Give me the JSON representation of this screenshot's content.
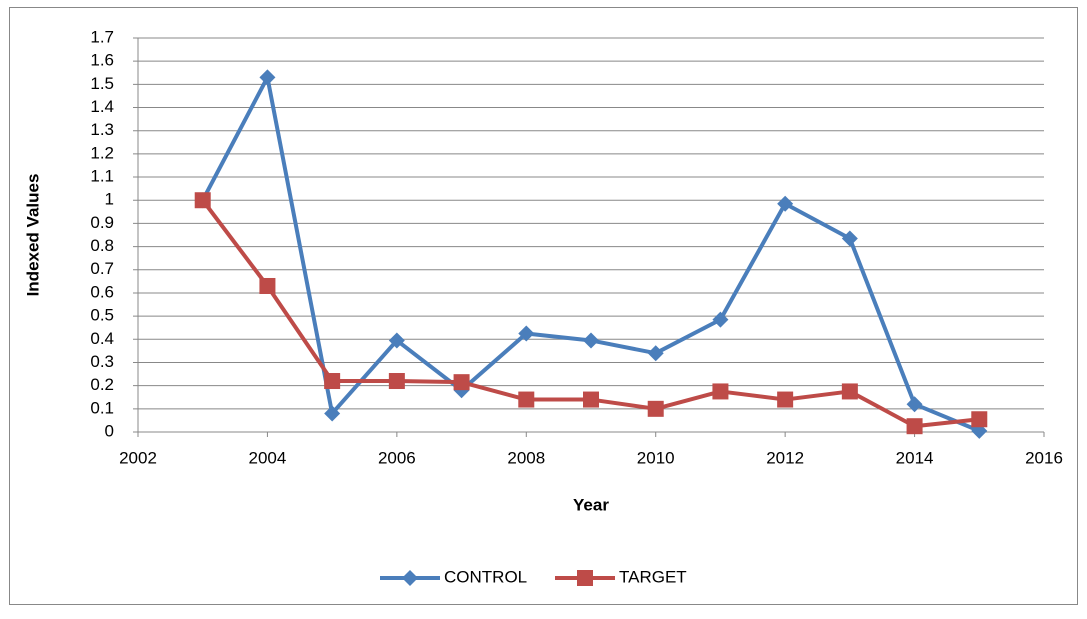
{
  "chart_data": {
    "type": "line",
    "x_label": "Year",
    "y_label": "Indexed Values",
    "x": [
      2003,
      2004,
      2005,
      2006,
      2007,
      2008,
      2009,
      2010,
      2011,
      2012,
      2013,
      2014,
      2015
    ],
    "series": [
      {
        "name": "CONTROL",
        "color": "#4a7ebb",
        "marker": "diamond",
        "values": [
          1.0,
          1.53,
          0.08,
          0.395,
          0.18,
          0.425,
          0.395,
          0.34,
          0.485,
          0.985,
          0.835,
          0.12,
          0.005
        ]
      },
      {
        "name": "TARGET",
        "color": "#be4b48",
        "marker": "square",
        "values": [
          1.0,
          0.63,
          0.22,
          0.22,
          0.215,
          0.14,
          0.14,
          0.1,
          0.175,
          0.14,
          0.175,
          0.025,
          0.055
        ]
      }
    ],
    "xlim": [
      2002,
      2016
    ],
    "xticks": [
      2002,
      2004,
      2006,
      2008,
      2010,
      2012,
      2014,
      2016
    ],
    "ylim": [
      0,
      1.7
    ],
    "yticks": [
      0,
      0.1,
      0.2,
      0.3,
      0.4,
      0.5,
      0.6,
      0.7,
      0.8,
      0.9,
      1,
      1.1,
      1.2,
      1.3,
      1.4,
      1.5,
      1.6,
      1.7
    ],
    "grid": true,
    "legend": "bottom"
  }
}
